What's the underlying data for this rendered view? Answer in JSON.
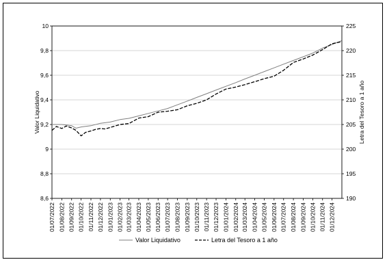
{
  "chart_data": {
    "type": "line",
    "title": "",
    "ylabel": "Valor Liquidativo",
    "y2label": "Letra del Tesoro a 1 año",
    "ylim": [
      8.6,
      10
    ],
    "y2lim": [
      190,
      225
    ],
    "yticks": [
      "8,6",
      "8,8",
      "9",
      "9,2",
      "9,4",
      "9,6",
      "9,8",
      "10"
    ],
    "y2ticks": [
      "190",
      "195",
      "200",
      "205",
      "210",
      "215",
      "220",
      "225"
    ],
    "xticks": [
      "01/07/2022",
      "01/08/2022",
      "01/09/2022",
      "01/10/2022",
      "01/11/2022",
      "01/12/2022",
      "01/01/2023",
      "01/02/2023",
      "01/03/2023",
      "01/04/2023",
      "01/05/2023",
      "01/06/2023",
      "01/07/2023",
      "01/08/2023",
      "01/09/2023",
      "01/10/2023",
      "01/11/2023",
      "01/12/2023",
      "01/01/2024",
      "01/02/2024",
      "01/03/2024",
      "01/04/2024",
      "01/05/2024",
      "01/06/2024",
      "01/07/2024",
      "01/08/2024",
      "01/09/2024",
      "01/10/2024",
      "01/11/2024",
      "01/12/2024"
    ],
    "grid": "horizontal",
    "legend": "bottom",
    "series": [
      {
        "name": "Valor Liquidativo",
        "axis": "left",
        "style": "solid",
        "color": "#7f7f7f",
        "x": [
          "01/07/2022",
          "01/08/2022",
          "01/09/2022",
          "15/09/2022",
          "01/10/2022",
          "01/11/2022",
          "01/12/2022",
          "01/01/2023",
          "01/02/2023",
          "01/03/2023",
          "01/04/2023",
          "01/05/2023",
          "01/06/2023",
          "01/07/2023",
          "01/08/2023",
          "01/09/2023",
          "01/10/2023",
          "01/11/2023",
          "01/12/2023",
          "01/01/2024",
          "01/02/2024",
          "01/03/2024",
          "01/04/2024",
          "01/05/2024",
          "01/06/2024",
          "01/07/2024",
          "01/08/2024",
          "01/09/2024",
          "01/10/2024",
          "01/11/2024",
          "01/12/2024",
          "31/12/2024"
        ],
        "values": [
          9.2,
          9.2,
          9.19,
          9.17,
          9.18,
          9.19,
          9.21,
          9.22,
          9.24,
          9.25,
          9.27,
          9.29,
          9.31,
          9.33,
          9.36,
          9.39,
          9.42,
          9.45,
          9.48,
          9.51,
          9.54,
          9.57,
          9.6,
          9.63,
          9.66,
          9.69,
          9.72,
          9.75,
          9.78,
          9.82,
          9.85,
          9.88
        ]
      },
      {
        "name": "Letra del Tesoro a 1 año",
        "axis": "right",
        "style": "dashed",
        "color": "#000000",
        "x": [
          "01/07/2022",
          "15/07/2022",
          "01/08/2022",
          "15/08/2022",
          "01/09/2022",
          "15/09/2022",
          "01/10/2022",
          "15/10/2022",
          "01/11/2022",
          "15/11/2022",
          "01/12/2022",
          "15/12/2022",
          "01/01/2023",
          "01/02/2023",
          "01/03/2023",
          "01/04/2023",
          "01/05/2023",
          "01/06/2023",
          "01/07/2023",
          "01/08/2023",
          "01/09/2023",
          "01/10/2023",
          "01/11/2023",
          "01/12/2023",
          "01/01/2024",
          "01/02/2024",
          "01/03/2024",
          "01/04/2024",
          "01/05/2024",
          "01/06/2024",
          "01/07/2024",
          "01/08/2024",
          "01/09/2024",
          "01/10/2024",
          "01/11/2024",
          "01/12/2024",
          "31/12/2024"
        ],
        "values": [
          203.8,
          204.6,
          204.2,
          204.7,
          204.3,
          203.8,
          202.7,
          203.4,
          203.7,
          204.0,
          204.2,
          204.1,
          204.4,
          205.0,
          205.2,
          206.3,
          206.6,
          207.5,
          207.7,
          208.0,
          208.8,
          209.3,
          210.0,
          211.2,
          212.2,
          212.6,
          213.1,
          213.7,
          214.3,
          214.8,
          216.0,
          217.6,
          218.3,
          219.1,
          220.2,
          221.4,
          221.8
        ]
      }
    ]
  }
}
